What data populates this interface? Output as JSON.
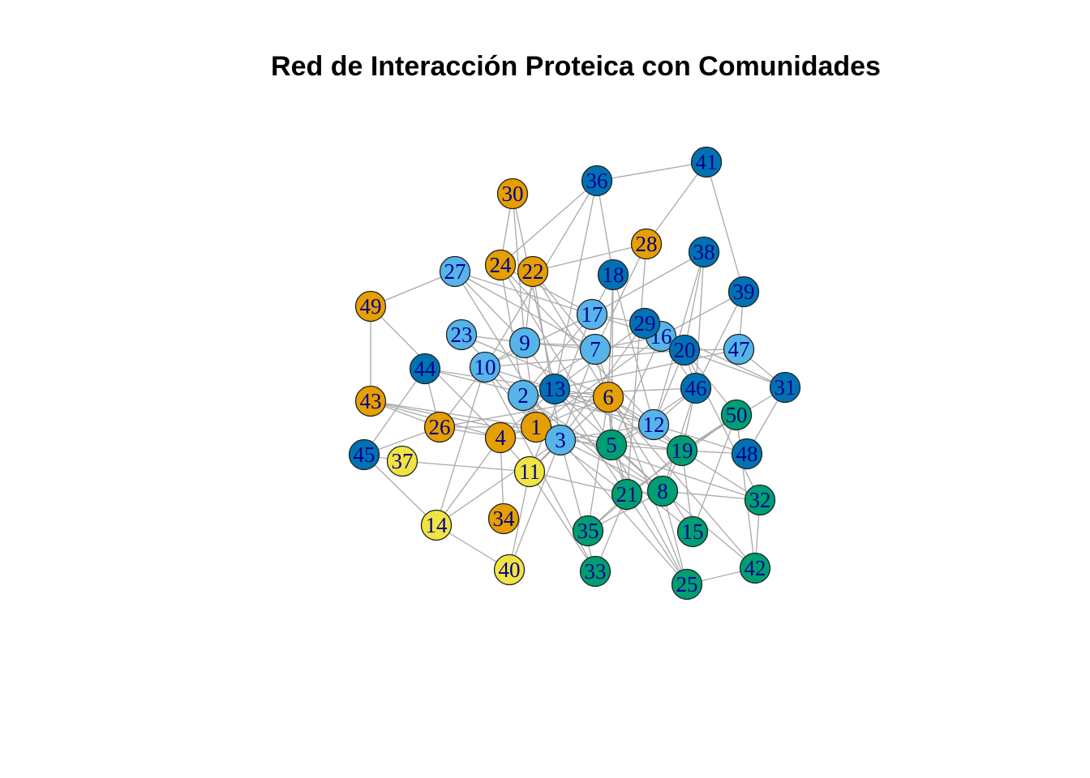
{
  "title": "Red de Interacción Proteica con Comunidades",
  "colors": {
    "community_orange": "#E69F00",
    "community_light_blue": "#56B4E9",
    "community_dark_blue": "#0072B2",
    "community_green": "#009E73",
    "community_yellow": "#F0E442",
    "edge": "#A9A9A9",
    "label": "#00008B"
  },
  "nodes": [
    {
      "id": "1",
      "community": "orange"
    },
    {
      "id": "2",
      "community": "light_blue"
    },
    {
      "id": "3",
      "community": "light_blue"
    },
    {
      "id": "4",
      "community": "orange"
    },
    {
      "id": "5",
      "community": "green"
    },
    {
      "id": "6",
      "community": "orange"
    },
    {
      "id": "7",
      "community": "light_blue"
    },
    {
      "id": "8",
      "community": "green"
    },
    {
      "id": "9",
      "community": "light_blue"
    },
    {
      "id": "10",
      "community": "light_blue"
    },
    {
      "id": "11",
      "community": "yellow"
    },
    {
      "id": "12",
      "community": "light_blue"
    },
    {
      "id": "13",
      "community": "dark_blue"
    },
    {
      "id": "14",
      "community": "yellow"
    },
    {
      "id": "15",
      "community": "green"
    },
    {
      "id": "16",
      "community": "light_blue"
    },
    {
      "id": "17",
      "community": "light_blue"
    },
    {
      "id": "18",
      "community": "dark_blue"
    },
    {
      "id": "19",
      "community": "green"
    },
    {
      "id": "20",
      "community": "dark_blue"
    },
    {
      "id": "21",
      "community": "green"
    },
    {
      "id": "22",
      "community": "orange"
    },
    {
      "id": "23",
      "community": "light_blue"
    },
    {
      "id": "24",
      "community": "orange"
    },
    {
      "id": "25",
      "community": "green"
    },
    {
      "id": "26",
      "community": "orange"
    },
    {
      "id": "27",
      "community": "light_blue"
    },
    {
      "id": "28",
      "community": "orange"
    },
    {
      "id": "29",
      "community": "dark_blue"
    },
    {
      "id": "30",
      "community": "orange"
    },
    {
      "id": "31",
      "community": "dark_blue"
    },
    {
      "id": "32",
      "community": "green"
    },
    {
      "id": "33",
      "community": "green"
    },
    {
      "id": "34",
      "community": "orange"
    },
    {
      "id": "35",
      "community": "green"
    },
    {
      "id": "36",
      "community": "dark_blue"
    },
    {
      "id": "37",
      "community": "yellow"
    },
    {
      "id": "38",
      "community": "dark_blue"
    },
    {
      "id": "39",
      "community": "dark_blue"
    },
    {
      "id": "40",
      "community": "yellow"
    },
    {
      "id": "41",
      "community": "dark_blue"
    },
    {
      "id": "42",
      "community": "green"
    },
    {
      "id": "43",
      "community": "orange"
    },
    {
      "id": "44",
      "community": "dark_blue"
    },
    {
      "id": "45",
      "community": "dark_blue"
    },
    {
      "id": "46",
      "community": "dark_blue"
    },
    {
      "id": "47",
      "community": "light_blue"
    },
    {
      "id": "48",
      "community": "dark_blue"
    },
    {
      "id": "49",
      "community": "orange"
    },
    {
      "id": "50",
      "community": "green"
    }
  ],
  "edges": [
    [
      "41",
      "36"
    ],
    [
      "41",
      "28"
    ],
    [
      "41",
      "39"
    ],
    [
      "36",
      "18"
    ],
    [
      "36",
      "10"
    ],
    [
      "36",
      "13"
    ],
    [
      "36",
      "24"
    ],
    [
      "30",
      "24"
    ],
    [
      "30",
      "9"
    ],
    [
      "30",
      "13"
    ],
    [
      "28",
      "22"
    ],
    [
      "28",
      "7"
    ],
    [
      "28",
      "21"
    ],
    [
      "38",
      "20"
    ],
    [
      "38",
      "46"
    ],
    [
      "38",
      "12"
    ],
    [
      "38",
      "17"
    ],
    [
      "39",
      "47"
    ],
    [
      "39",
      "46"
    ],
    [
      "39",
      "16"
    ],
    [
      "27",
      "49"
    ],
    [
      "27",
      "7"
    ],
    [
      "27",
      "3"
    ],
    [
      "27",
      "9"
    ],
    [
      "27",
      "16"
    ],
    [
      "24",
      "2"
    ],
    [
      "24",
      "5"
    ],
    [
      "24",
      "17"
    ],
    [
      "24",
      "12"
    ],
    [
      "22",
      "9"
    ],
    [
      "22",
      "3"
    ],
    [
      "22",
      "7"
    ],
    [
      "22",
      "6"
    ],
    [
      "18",
      "6"
    ],
    [
      "18",
      "12"
    ],
    [
      "18",
      "5"
    ],
    [
      "18",
      "17"
    ],
    [
      "49",
      "43"
    ],
    [
      "49",
      "4"
    ],
    [
      "17",
      "10"
    ],
    [
      "17",
      "2"
    ],
    [
      "17",
      "11"
    ],
    [
      "17",
      "29"
    ],
    [
      "29",
      "20"
    ],
    [
      "29",
      "13"
    ],
    [
      "29",
      "3"
    ],
    [
      "29",
      "31"
    ],
    [
      "16",
      "7"
    ],
    [
      "16",
      "46"
    ],
    [
      "16",
      "1"
    ],
    [
      "16",
      "5"
    ],
    [
      "20",
      "46"
    ],
    [
      "20",
      "50"
    ],
    [
      "20",
      "47"
    ],
    [
      "20",
      "12"
    ],
    [
      "20",
      "9"
    ],
    [
      "20",
      "32"
    ],
    [
      "20",
      "31"
    ],
    [
      "20",
      "10"
    ],
    [
      "47",
      "31"
    ],
    [
      "47",
      "13"
    ],
    [
      "31",
      "19"
    ],
    [
      "31",
      "48"
    ],
    [
      "46",
      "12"
    ],
    [
      "46",
      "8"
    ],
    [
      "46",
      "2"
    ],
    [
      "46",
      "5"
    ],
    [
      "46",
      "19"
    ],
    [
      "23",
      "9"
    ],
    [
      "23",
      "6"
    ],
    [
      "23",
      "3"
    ],
    [
      "9",
      "10"
    ],
    [
      "9",
      "7"
    ],
    [
      "9",
      "1"
    ],
    [
      "9",
      "25"
    ],
    [
      "7",
      "2"
    ],
    [
      "7",
      "3"
    ],
    [
      "7",
      "21"
    ],
    [
      "7",
      "25"
    ],
    [
      "10",
      "13"
    ],
    [
      "10",
      "26"
    ],
    [
      "10",
      "1"
    ],
    [
      "10",
      "14"
    ],
    [
      "10",
      "33"
    ],
    [
      "44",
      "45"
    ],
    [
      "44",
      "13"
    ],
    [
      "44",
      "26"
    ],
    [
      "44",
      "12"
    ],
    [
      "43",
      "4"
    ],
    [
      "43",
      "26"
    ],
    [
      "43",
      "3"
    ],
    [
      "43",
      "19"
    ],
    [
      "2",
      "1"
    ],
    [
      "2",
      "3"
    ],
    [
      "2",
      "6"
    ],
    [
      "2",
      "8"
    ],
    [
      "2",
      "15"
    ],
    [
      "13",
      "6"
    ],
    [
      "13",
      "4"
    ],
    [
      "13",
      "12"
    ],
    [
      "13",
      "19"
    ],
    [
      "6",
      "1"
    ],
    [
      "6",
      "19"
    ],
    [
      "6",
      "12"
    ],
    [
      "6",
      "5"
    ],
    [
      "6",
      "11"
    ],
    [
      "6",
      "15"
    ],
    [
      "6",
      "42"
    ],
    [
      "6",
      "35"
    ],
    [
      "26",
      "45"
    ],
    [
      "26",
      "1"
    ],
    [
      "26",
      "6"
    ],
    [
      "26",
      "4"
    ],
    [
      "45",
      "37"
    ],
    [
      "45",
      "14"
    ],
    [
      "37",
      "11"
    ],
    [
      "4",
      "11"
    ],
    [
      "4",
      "34"
    ],
    [
      "4",
      "14"
    ],
    [
      "4",
      "1"
    ],
    [
      "4",
      "3"
    ],
    [
      "1",
      "3"
    ],
    [
      "1",
      "5"
    ],
    [
      "1",
      "8"
    ],
    [
      "1",
      "21"
    ],
    [
      "1",
      "32"
    ],
    [
      "3",
      "5"
    ],
    [
      "3",
      "11"
    ],
    [
      "3",
      "14"
    ],
    [
      "3",
      "40"
    ],
    [
      "3",
      "33"
    ],
    [
      "3",
      "12"
    ],
    [
      "3",
      "25"
    ],
    [
      "5",
      "19"
    ],
    [
      "5",
      "8"
    ],
    [
      "5",
      "21"
    ],
    [
      "5",
      "12"
    ],
    [
      "12",
      "19"
    ],
    [
      "12",
      "48"
    ],
    [
      "19",
      "50"
    ],
    [
      "19",
      "48"
    ],
    [
      "19",
      "8"
    ],
    [
      "19",
      "32"
    ],
    [
      "19",
      "35"
    ],
    [
      "50",
      "21"
    ],
    [
      "50",
      "42"
    ],
    [
      "50",
      "15"
    ],
    [
      "8",
      "21"
    ],
    [
      "8",
      "25"
    ],
    [
      "8",
      "42"
    ],
    [
      "8",
      "32"
    ],
    [
      "8",
      "35"
    ],
    [
      "8",
      "13"
    ],
    [
      "21",
      "33"
    ],
    [
      "21",
      "35"
    ],
    [
      "11",
      "21"
    ],
    [
      "11",
      "40"
    ],
    [
      "11",
      "33"
    ],
    [
      "14",
      "40"
    ],
    [
      "15",
      "19"
    ],
    [
      "25",
      "42"
    ],
    [
      "25",
      "5"
    ],
    [
      "42",
      "32"
    ]
  ]
}
